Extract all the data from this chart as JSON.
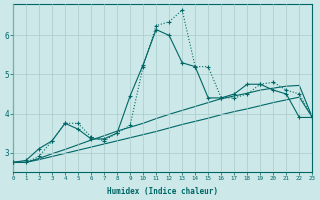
{
  "xlabel": "Humidex (Indice chaleur)",
  "bg_color": "#cce8e8",
  "grid_color": "#aacccc",
  "line_color": "#006666",
  "xlim": [
    0,
    23
  ],
  "ylim": [
    2.5,
    6.8
  ],
  "xticks": [
    0,
    1,
    2,
    3,
    4,
    5,
    6,
    7,
    8,
    9,
    10,
    11,
    12,
    13,
    14,
    15,
    16,
    17,
    18,
    19,
    20,
    21,
    22,
    23
  ],
  "yticks": [
    3,
    4,
    5,
    6
  ],
  "s1_x": [
    0,
    1,
    2,
    3,
    4,
    5,
    6,
    7,
    8,
    9,
    10,
    11,
    12,
    13,
    14,
    15,
    16,
    17,
    18,
    19,
    20,
    21,
    22,
    23
  ],
  "s1_y": [
    2.75,
    2.75,
    2.9,
    3.3,
    3.75,
    3.75,
    3.4,
    3.3,
    3.5,
    3.7,
    5.2,
    6.25,
    6.35,
    6.65,
    5.2,
    5.2,
    4.4,
    4.4,
    4.5,
    4.75,
    4.8,
    4.6,
    4.5,
    3.9
  ],
  "s2_x": [
    0,
    1,
    2,
    3,
    4,
    5,
    6,
    7,
    8,
    9,
    10,
    11,
    12,
    13,
    14,
    15,
    16,
    17,
    18,
    19,
    20,
    21,
    22,
    23
  ],
  "s2_y": [
    2.75,
    2.8,
    3.1,
    3.3,
    3.75,
    3.6,
    3.35,
    3.35,
    3.5,
    4.45,
    5.25,
    6.15,
    6.0,
    5.3,
    5.2,
    4.4,
    4.4,
    4.5,
    4.75,
    4.75,
    4.6,
    4.5,
    3.9,
    3.9
  ],
  "s3_x": [
    0,
    1,
    2,
    3,
    4,
    5,
    6,
    7,
    8,
    9,
    10,
    11,
    12,
    13,
    14,
    15,
    16,
    17,
    18,
    19,
    20,
    21,
    22,
    23
  ],
  "s3_y": [
    2.75,
    2.75,
    2.85,
    2.97,
    3.08,
    3.2,
    3.32,
    3.43,
    3.55,
    3.65,
    3.75,
    3.87,
    3.98,
    4.08,
    4.18,
    4.28,
    4.38,
    4.45,
    4.52,
    4.6,
    4.65,
    4.7,
    4.72,
    3.9
  ],
  "s4_x": [
    0,
    1,
    2,
    3,
    4,
    5,
    6,
    7,
    8,
    9,
    10,
    11,
    12,
    13,
    14,
    15,
    16,
    17,
    18,
    19,
    20,
    21,
    22,
    23
  ],
  "s4_y": [
    2.75,
    2.75,
    2.82,
    2.9,
    2.98,
    3.06,
    3.14,
    3.22,
    3.3,
    3.38,
    3.46,
    3.54,
    3.63,
    3.72,
    3.8,
    3.88,
    3.97,
    4.05,
    4.12,
    4.2,
    4.28,
    4.35,
    4.42,
    3.9
  ]
}
